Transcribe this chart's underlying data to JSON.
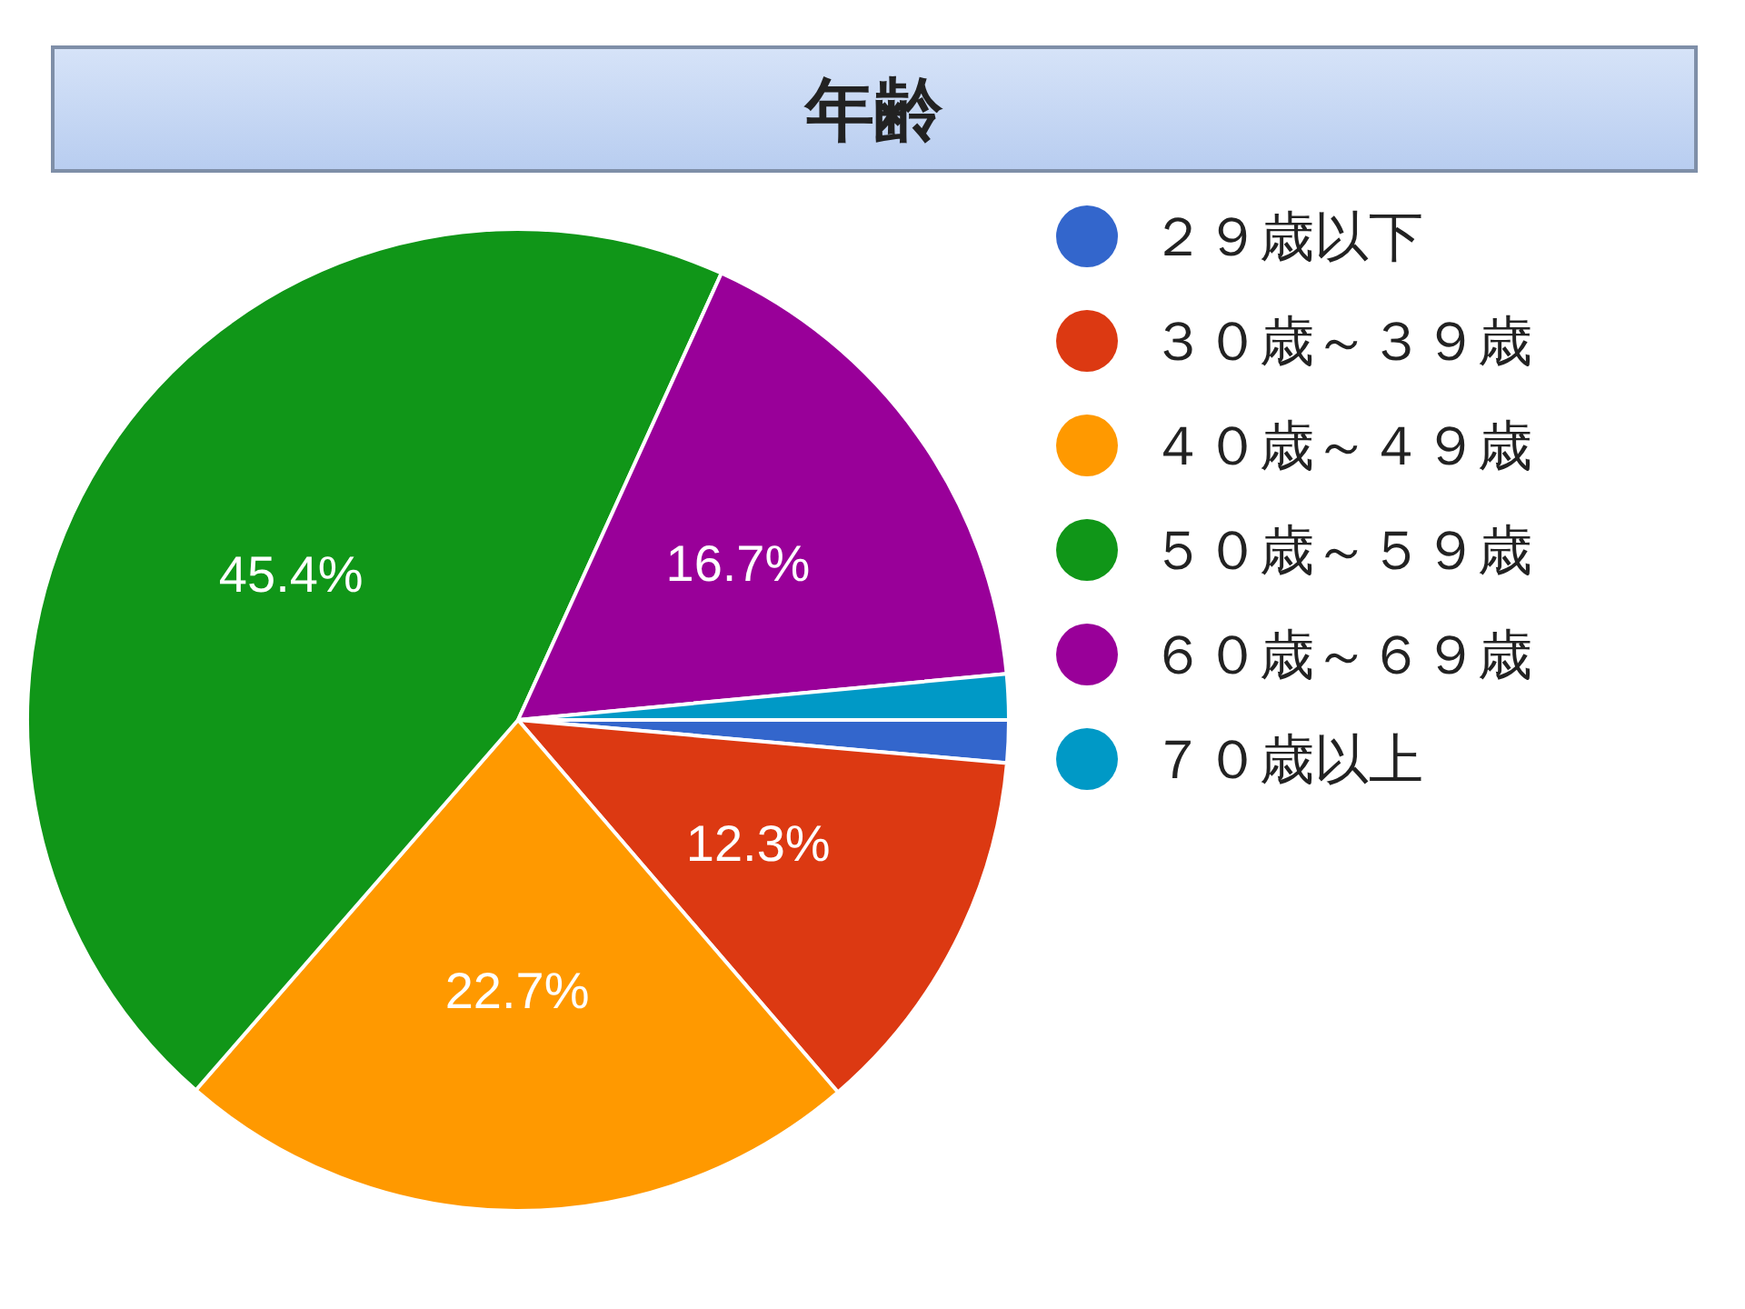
{
  "chart_data": {
    "type": "pie",
    "title": "年齢",
    "categories": [
      "２９歳以下",
      "３０歳～３９歳",
      "４０歳～４９歳",
      "５０歳～５９歳",
      "６０歳～６９歳",
      "７０歳以上"
    ],
    "values": [
      1.4,
      12.3,
      22.7,
      45.4,
      16.7,
      1.5
    ],
    "value_labels": [
      null,
      "12.3%",
      "22.7%",
      "45.4%",
      "16.7%",
      null
    ],
    "colors": [
      "#3366cc",
      "#dc3912",
      "#ff9900",
      "#109618",
      "#990099",
      "#0099c6"
    ],
    "legend": "right"
  }
}
